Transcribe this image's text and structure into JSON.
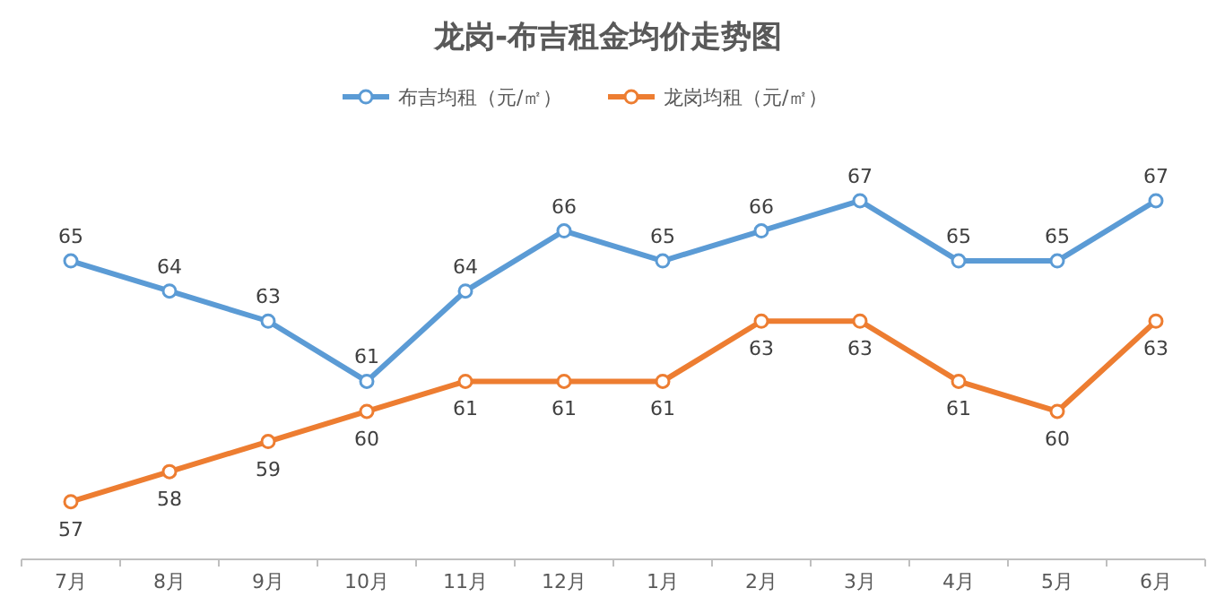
{
  "chart_data": {
    "type": "line",
    "title": "龙岗-布吉租金均价走势图",
    "categories": [
      "7月",
      "8月",
      "9月",
      "10月",
      "11月",
      "12月",
      "1月",
      "2月",
      "3月",
      "4月",
      "5月",
      "6月"
    ],
    "series": [
      {
        "name": "布吉均租（元/㎡）",
        "color": "#5b9bd5",
        "values": [
          65,
          64,
          63,
          61,
          64,
          66,
          65,
          66,
          67,
          65,
          65,
          67
        ]
      },
      {
        "name": "龙岗均租（元/㎡）",
        "color": "#ed7d31",
        "values": [
          57,
          58,
          59,
          60,
          61,
          61,
          61,
          63,
          63,
          61,
          60,
          63
        ]
      }
    ],
    "marker": "circle",
    "line_style": "solid",
    "legend": "top",
    "data_labels": true
  }
}
